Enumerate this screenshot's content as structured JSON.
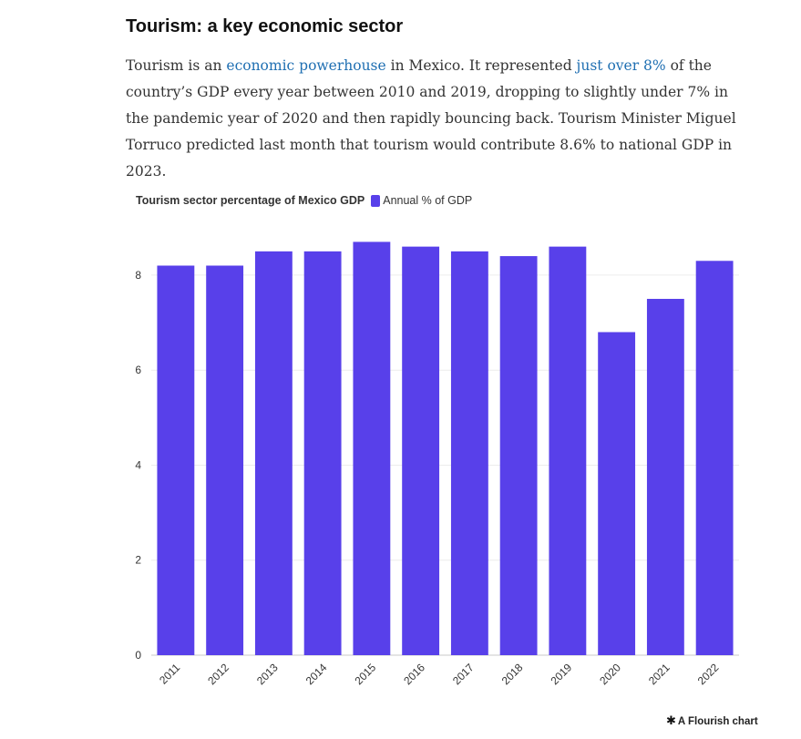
{
  "article": {
    "headline": "Tourism: a key economic sector",
    "paragraph": {
      "part1": "Tourism is an ",
      "link1": "economic powerhouse",
      "part2": " in Mexico. It represented ",
      "link2": "just over 8%",
      "part3": " of the country’s GDP every year between 2010 and 2019, dropping to slightly under 7% in the pandemic year of 2020 and then rapidly bouncing back. Tourism Minister Miguel Torruco predicted last month that tourism would contribute 8.6% to national GDP in 2023."
    }
  },
  "chart_data": {
    "type": "bar",
    "title": "Tourism sector percentage of Mexico GDP",
    "categories": [
      "2011",
      "2012",
      "2013",
      "2014",
      "2015",
      "2016",
      "2017",
      "2018",
      "2019",
      "2020",
      "2021",
      "2022"
    ],
    "series": [
      {
        "name": "Annual % of GDP",
        "color": "#5840ea",
        "values": [
          8.2,
          8.2,
          8.5,
          8.5,
          8.7,
          8.6,
          8.5,
          8.4,
          8.6,
          6.8,
          7.5,
          8.3
        ]
      }
    ],
    "yticks": [
      0,
      2,
      4,
      6,
      8
    ],
    "ylim": [
      0,
      8.9
    ],
    "xlabel": "",
    "ylabel": "",
    "grid": true,
    "legend_position": "top-left"
  },
  "footer": {
    "credit_icon": "flourish-asterisk-icon",
    "credit": "A Flourish chart"
  }
}
